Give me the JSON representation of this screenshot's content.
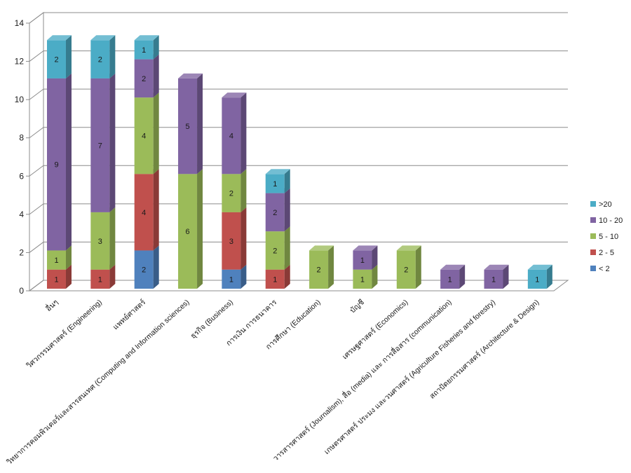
{
  "chart_data": {
    "type": "bar",
    "stacked": true,
    "style_3d": true,
    "categories": [
      "อื่นๆ",
      "วิศวกรรมศาสตร์ (Engineering)",
      "แพทย์ศาสตร์",
      "วิทยาการคอมพิวเตอร์และสารสนเทศ (Computing and Information sciences)",
      "ธุรกิจ (Business)",
      "การเงิน การธนาคาร",
      "การศึกษา (Education)",
      "บัญชี",
      "เศรษฐศาสตร์ (Economics)",
      "วารสารศาสตร์ (Journalism), สื่อ (media) และ การสื่อสาร (communication)",
      "เกษตรศาสตร์ ประมง และวนศาสตร์ (Agriculture Fisheries and forestry)",
      "สถาปัตยกรรมศาสตร์ (Architecture & Design)"
    ],
    "series": [
      {
        "name": "< 2",
        "color": "#4F81BD",
        "values": [
          0,
          0,
          2,
          0,
          1,
          0,
          0,
          0,
          0,
          0,
          0,
          0
        ]
      },
      {
        "name": "2 - 5",
        "color": "#C0504D",
        "values": [
          1,
          1,
          4,
          0,
          3,
          1,
          0,
          0,
          0,
          0,
          0,
          0
        ]
      },
      {
        "name": "5 - 10",
        "color": "#9BBB59",
        "values": [
          1,
          3,
          4,
          6,
          2,
          2,
          2,
          1,
          2,
          0,
          0,
          0
        ]
      },
      {
        "name": "10 - 20",
        "color": "#8064A2",
        "values": [
          9,
          7,
          2,
          5,
          4,
          2,
          0,
          1,
          0,
          1,
          1,
          0
        ]
      },
      {
        "name": ">20",
        "color": "#4BACC6",
        "values": [
          2,
          2,
          1,
          0,
          0,
          1,
          0,
          0,
          0,
          0,
          0,
          1
        ]
      }
    ],
    "ylim": [
      0,
      14
    ],
    "yticks": [
      0,
      2,
      4,
      6,
      8,
      10,
      12,
      14
    ],
    "grid": true,
    "data_labels": true,
    "legend_position": "right"
  }
}
